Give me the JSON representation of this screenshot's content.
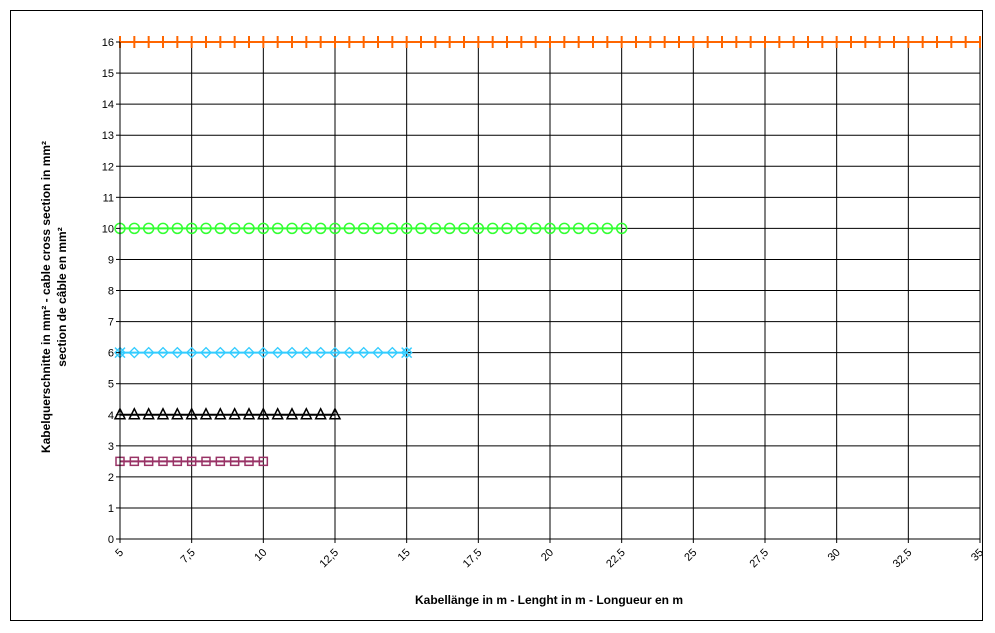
{
  "chart_data": {
    "type": "line",
    "xlabel": "Kabellänge in m - Lenght in m - Longueur en m",
    "ylabel_lines": [
      "Kabelquerschnitte in mm² - cable cross section in mm²",
      "section de câble en mm²"
    ],
    "x_ticks": [
      "5",
      "7,5",
      "10",
      "12,5",
      "15",
      "17,5",
      "20",
      "22,5",
      "25",
      "27,5",
      "30",
      "32,5",
      "35"
    ],
    "y_ticks": [
      "0",
      "1",
      "2",
      "3",
      "4",
      "5",
      "6",
      "7",
      "8",
      "9",
      "10",
      "11",
      "12",
      "13",
      "14",
      "15",
      "16"
    ],
    "xlim": [
      5,
      35
    ],
    "ylim": [
      0,
      16
    ],
    "grid": true,
    "legend": "none",
    "series": [
      {
        "value": 2.5,
        "x_start": 5,
        "x_end": 10,
        "x_step": 0.5,
        "marker": "square",
        "color": "#993366"
      },
      {
        "value": 4,
        "x_start": 5,
        "x_end": 12.5,
        "x_step": 0.5,
        "marker": "triangle",
        "color": "#000000"
      },
      {
        "value": 6,
        "x_start": 5,
        "x_end": 15,
        "x_step": 0.5,
        "marker": "diamond-x",
        "color": "#33CCFF"
      },
      {
        "value": 10,
        "x_start": 5,
        "x_end": 22.5,
        "x_step": 0.5,
        "marker": "circle",
        "color": "#33FF33"
      },
      {
        "value": 16,
        "x_start": 5,
        "x_end": 35,
        "x_step": 0.5,
        "marker": "plus",
        "color": "#FF6600"
      }
    ]
  }
}
